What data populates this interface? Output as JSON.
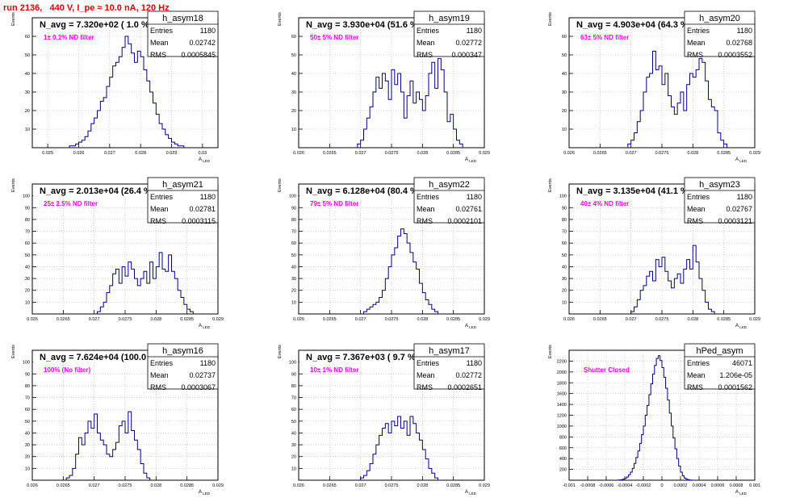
{
  "page": {
    "title": "run 2136,   440 V, I_pe ≈ 10.0 nA, 120 Hz"
  },
  "colors": {
    "histogram": "#000080",
    "annotation": "#ff00ff",
    "title": "#e00000",
    "grid": "#b4b4b4"
  },
  "chart_data": [
    {
      "type": "histogram",
      "name": "h_asym18",
      "navg": "N_avg = 7.320e+02 ( 1.0 %)",
      "filter": "1± 0.1% ND filter",
      "stats": [
        [
          "Entries",
          "1180"
        ],
        [
          "Mean",
          "0.02742"
        ],
        [
          "RMS",
          "0.0005845"
        ]
      ],
      "xlim": [
        0.0245,
        0.0305
      ],
      "ylim": [
        0,
        70
      ],
      "xticks": [
        0.025,
        0.026,
        0.027,
        0.028,
        0.029,
        0.03
      ],
      "xticklabels": [
        "0.025",
        "0.026",
        "0.027",
        "0.028",
        "0.029",
        "0.03"
      ],
      "yticks": [
        10,
        20,
        30,
        40,
        50,
        60
      ],
      "xlabel": "A_LED",
      "ylabel": "Events",
      "bins_x0": 0.0257,
      "bin_width": 0.0001,
      "counts": [
        1,
        1,
        2,
        3,
        4,
        6,
        9,
        13,
        16,
        20,
        25,
        27,
        33,
        38,
        44,
        46,
        49,
        54,
        60,
        56,
        51,
        46,
        52,
        49,
        42,
        36,
        30,
        24,
        18,
        13,
        10,
        7,
        5,
        3,
        2,
        1,
        1
      ]
    },
    {
      "type": "histogram",
      "name": "h_asym19",
      "navg": "N_avg = 3.930e+04 (51.6 %)",
      "filter": "50± 5% ND filter",
      "stats": [
        [
          "Entries",
          "1180"
        ],
        [
          "Mean",
          "0.02772"
        ],
        [
          "RMS",
          "0.000347"
        ]
      ],
      "xlim": [
        0.026,
        0.029
      ],
      "ylim": [
        0,
        70
      ],
      "xticks": [
        0.026,
        0.0265,
        0.027,
        0.0275,
        0.028,
        0.0285,
        0.029
      ],
      "xticklabels": [
        "0.026",
        "0.0265",
        "0.027",
        "0.0275",
        "0.028",
        "0.0285",
        "0.029"
      ],
      "yticks": [
        10,
        20,
        30,
        40,
        50,
        60
      ],
      "xlabel": "A_LED",
      "ylabel": "Events",
      "bins_x0": 0.02695,
      "bin_width": 5e-05,
      "counts": [
        2,
        4,
        10,
        16,
        22,
        30,
        38,
        32,
        40,
        36,
        26,
        42,
        34,
        40,
        30,
        16,
        28,
        36,
        24,
        30,
        26,
        20,
        28,
        40,
        46,
        32,
        48,
        42,
        30,
        14,
        18,
        10,
        4,
        2
      ]
    },
    {
      "type": "histogram",
      "name": "h_asym20",
      "navg": "N_avg = 4.903e+04 (64.3 %)",
      "filter": "63± 5% ND filter",
      "stats": [
        [
          "Entries",
          "1180"
        ],
        [
          "Mean",
          "0.02768"
        ],
        [
          "RMS",
          "0.0003552"
        ]
      ],
      "xlim": [
        0.026,
        0.029
      ],
      "ylim": [
        0,
        70
      ],
      "xticks": [
        0.026,
        0.0265,
        0.027,
        0.0275,
        0.028,
        0.0285,
        0.029
      ],
      "xticklabels": [
        "0.026",
        "0.0265",
        "0.027",
        "0.0275",
        "0.028",
        "0.0285",
        "0.029"
      ],
      "yticks": [
        10,
        20,
        30,
        40,
        50,
        60
      ],
      "xlabel": "A_LED",
      "ylabel": "Events",
      "bins_x0": 0.02695,
      "bin_width": 5e-05,
      "counts": [
        2,
        4,
        8,
        14,
        20,
        30,
        38,
        40,
        52,
        42,
        44,
        34,
        40,
        28,
        22,
        18,
        24,
        30,
        20,
        34,
        40,
        38,
        42,
        48,
        46,
        36,
        26,
        22,
        20,
        8,
        4,
        2
      ]
    },
    {
      "type": "histogram",
      "name": "h_asym21",
      "navg": "N_avg = 2.013e+04 (26.4 %)",
      "filter": "25± 2.5% ND filter",
      "stats": [
        [
          "Entries",
          "1180"
        ],
        [
          "Mean",
          "0.02781"
        ],
        [
          "RMS",
          "0.0003115"
        ]
      ],
      "xlim": [
        0.026,
        0.029
      ],
      "ylim": [
        0,
        110
      ],
      "xticks": [
        0.026,
        0.0265,
        0.027,
        0.0275,
        0.028,
        0.0285,
        0.029
      ],
      "xticklabels": [
        "0.026",
        "0.0265",
        "0.027",
        "0.0275",
        "0.028",
        "0.0285",
        "0.029"
      ],
      "yticks": [
        10,
        20,
        30,
        40,
        50,
        60,
        70,
        80,
        90,
        100
      ],
      "xlabel": "A_LED",
      "ylabel": "Events",
      "bins_x0": 0.02705,
      "bin_width": 5e-05,
      "counts": [
        2,
        6,
        10,
        18,
        24,
        34,
        38,
        26,
        40,
        32,
        44,
        38,
        30,
        24,
        30,
        36,
        26,
        44,
        30,
        40,
        52,
        38,
        36,
        50,
        36,
        30,
        20,
        14,
        8,
        4,
        2
      ]
    },
    {
      "type": "histogram",
      "name": "h_asym22",
      "navg": "N_avg = 6.128e+04 (80.4 %)",
      "filter": "79± 5% ND filter",
      "stats": [
        [
          "Entries",
          "1180"
        ],
        [
          "Mean",
          "0.02761"
        ],
        [
          "RMS",
          "0.0002101"
        ]
      ],
      "xlim": [
        0.026,
        0.029
      ],
      "ylim": [
        0,
        110
      ],
      "xticks": [
        0.026,
        0.0265,
        0.027,
        0.0275,
        0.028,
        0.0285,
        0.029
      ],
      "xticklabels": [
        "0.026",
        "0.0265",
        "0.027",
        "0.0275",
        "0.028",
        "0.0285",
        "0.029"
      ],
      "yticks": [
        10,
        20,
        30,
        40,
        50,
        60,
        70,
        80,
        90,
        100
      ],
      "xlabel": "A_LED",
      "ylabel": "Events",
      "bins_x0": 0.02705,
      "bin_width": 5e-05,
      "counts": [
        2,
        4,
        6,
        8,
        10,
        14,
        20,
        30,
        40,
        50,
        56,
        66,
        72,
        68,
        60,
        52,
        44,
        38,
        26,
        18,
        12,
        8,
        4,
        2
      ]
    },
    {
      "type": "histogram",
      "name": "h_asym23",
      "navg": "N_avg = 3.135e+04 (41.1 %)",
      "filter": "40± 4% ND filter",
      "stats": [
        [
          "Entries",
          "1180"
        ],
        [
          "Mean",
          "0.02767"
        ],
        [
          "RMS",
          "0.0003121"
        ]
      ],
      "xlim": [
        0.026,
        0.029
      ],
      "ylim": [
        0,
        110
      ],
      "xticks": [
        0.026,
        0.0265,
        0.027,
        0.0275,
        0.028,
        0.0285,
        0.029
      ],
      "xticklabels": [
        "0.026",
        "0.0265",
        "0.027",
        "0.0275",
        "0.028",
        "0.0285",
        "0.029"
      ],
      "yticks": [
        10,
        20,
        30,
        40,
        50,
        60,
        70,
        80,
        90,
        100
      ],
      "xlabel": "A_LED",
      "ylabel": "Events",
      "bins_x0": 0.027,
      "bin_width": 5e-05,
      "counts": [
        2,
        6,
        12,
        20,
        24,
        32,
        36,
        28,
        46,
        40,
        48,
        36,
        28,
        22,
        30,
        34,
        26,
        38,
        46,
        38,
        58,
        44,
        30,
        20,
        10,
        4,
        2
      ]
    },
    {
      "type": "histogram",
      "name": "h_asym16",
      "navg": "N_avg = 7.624e+04 (100.0 %)",
      "filter": "100% (No filter)",
      "stats": [
        [
          "Entries",
          "1180"
        ],
        [
          "Mean",
          "0.02737"
        ],
        [
          "RMS",
          "0.0003067"
        ]
      ],
      "xlim": [
        0.026,
        0.029
      ],
      "ylim": [
        0,
        110
      ],
      "xticks": [
        0.026,
        0.0265,
        0.027,
        0.0275,
        0.028,
        0.0285,
        0.029
      ],
      "xticklabels": [
        "0.026",
        "0.0265",
        "0.027",
        "0.0275",
        "0.028",
        "0.0285",
        "0.029"
      ],
      "yticks": [
        10,
        20,
        30,
        40,
        50,
        60,
        70,
        80,
        90,
        100
      ],
      "xlabel": "A_LED",
      "ylabel": "Events",
      "bins_x0": 0.02655,
      "bin_width": 5e-05,
      "counts": [
        2,
        4,
        10,
        22,
        36,
        30,
        40,
        50,
        44,
        56,
        40,
        34,
        30,
        22,
        20,
        26,
        32,
        46,
        50,
        40,
        58,
        42,
        34,
        26,
        14,
        6,
        2
      ]
    },
    {
      "type": "histogram",
      "name": "h_asym17",
      "navg": "N_avg = 7.367e+03 ( 9.7 %)",
      "filter": "10± 1% ND filter",
      "stats": [
        [
          "Entries",
          "1180"
        ],
        [
          "Mean",
          "0.02772"
        ],
        [
          "RMS",
          "0.0002651"
        ]
      ],
      "xlim": [
        0.026,
        0.029
      ],
      "ylim": [
        0,
        110
      ],
      "xticks": [
        0.026,
        0.0265,
        0.027,
        0.0275,
        0.028,
        0.0285,
        0.029
      ],
      "xticklabels": [
        "0.026",
        "0.0265",
        "0.027",
        "0.0275",
        "0.028",
        "0.0285",
        "0.029"
      ],
      "yticks": [
        10,
        20,
        30,
        40,
        50,
        60,
        70,
        80,
        90,
        100
      ],
      "xlabel": "A_LED",
      "ylabel": "Events",
      "bins_x0": 0.027,
      "bin_width": 5e-05,
      "counts": [
        2,
        4,
        8,
        14,
        22,
        30,
        38,
        44,
        48,
        40,
        50,
        46,
        54,
        44,
        50,
        38,
        54,
        48,
        40,
        34,
        26,
        18,
        10,
        6,
        2
      ]
    },
    {
      "type": "histogram",
      "name": "hPed_asym",
      "navg": "",
      "filter": "Shutter Closed",
      "stats": [
        [
          "Entries",
          "46071"
        ],
        [
          "Mean",
          "1.206e-05"
        ],
        [
          "RMS",
          "0.0001562"
        ]
      ],
      "xlim": [
        -0.001,
        0.001
      ],
      "ylim": [
        0,
        2400
      ],
      "xticks": [
        -0.001,
        -0.0008,
        -0.0006,
        -0.0004,
        -0.0002,
        0,
        0.0002,
        0.0004,
        0.0006,
        0.0008,
        0.001
      ],
      "xticklabels": [
        "-0.001",
        "-0.0008",
        "-0.0006",
        "-0.0004",
        "-0.0002",
        "0",
        "0.0002",
        "0.0004",
        "0.0006",
        "0.0008",
        "0.001"
      ],
      "yticks": [
        200,
        400,
        600,
        800,
        1000,
        1200,
        1400,
        1600,
        1800,
        2000,
        2200
      ],
      "xlabel": "A_LED",
      "ylabel": "Events",
      "bins_x0": -0.00048,
      "bin_width": 2e-05,
      "counts": [
        2,
        5,
        10,
        20,
        35,
        60,
        100,
        150,
        220,
        310,
        420,
        540,
        680,
        840,
        1000,
        1200,
        1380,
        1580,
        1780,
        1960,
        2120,
        2250,
        2300,
        2210,
        2080,
        1900,
        1700,
        1480,
        1240,
        1000,
        780,
        580,
        400,
        260,
        150,
        80,
        40,
        18,
        8,
        3
      ]
    }
  ]
}
